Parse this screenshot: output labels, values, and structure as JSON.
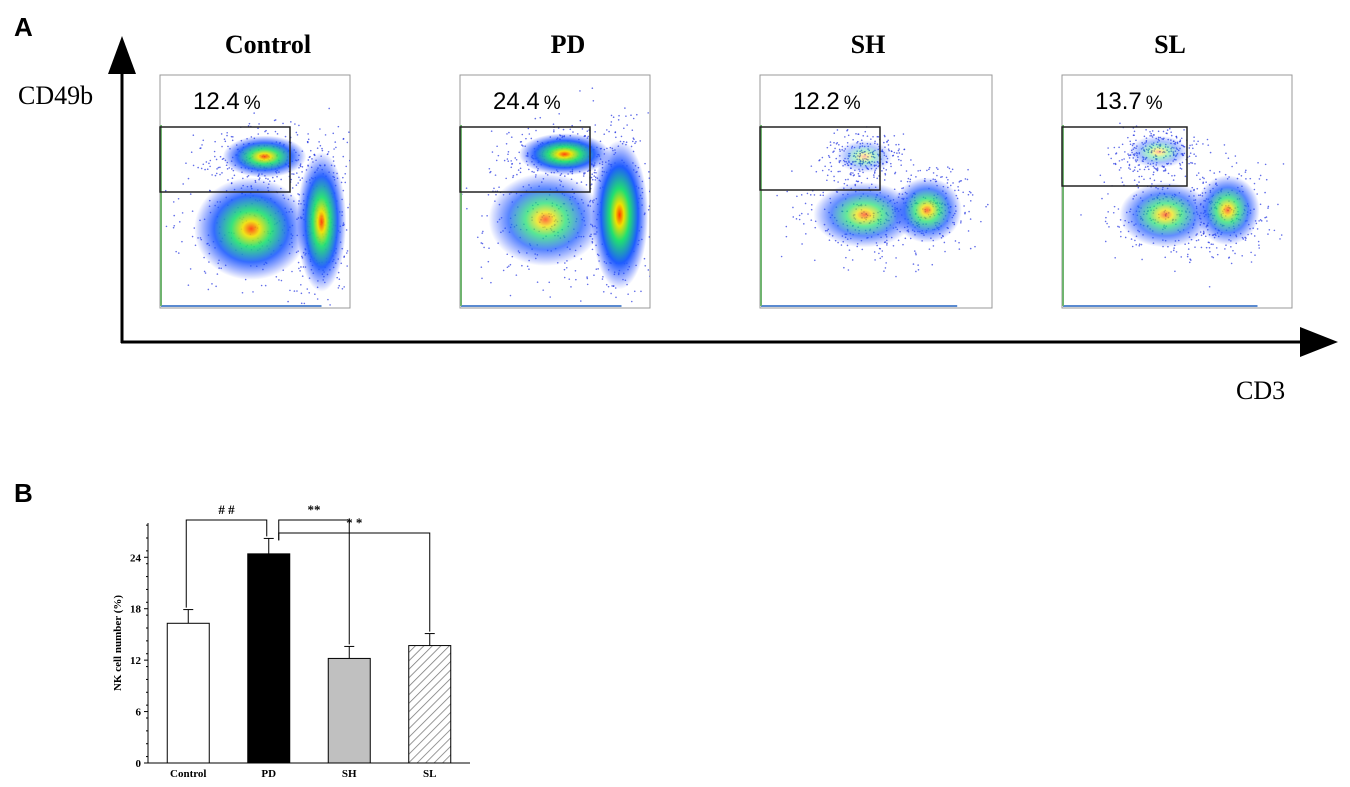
{
  "panel_labels": [
    "A",
    "B"
  ],
  "flow": {
    "y_axis_label": "CD49b",
    "x_axis_label": "CD3",
    "plots": [
      {
        "title": "Control",
        "gate_value": "12.4",
        "unit": "%"
      },
      {
        "title": "PD",
        "gate_value": "24.4",
        "unit": "%"
      },
      {
        "title": "SH",
        "gate_value": "12.2",
        "unit": "%"
      },
      {
        "title": "SL",
        "gate_value": "13.7",
        "unit": "%"
      }
    ]
  },
  "chart_data": {
    "type": "bar",
    "y_label": "NK cell number (%)",
    "categories": [
      "Control",
      "PD",
      "SH",
      "SL"
    ],
    "values": [
      16.3,
      24.4,
      12.2,
      13.7
    ],
    "errors": [
      1.6,
      1.8,
      1.4,
      1.4
    ],
    "colors": [
      "#ffffff",
      "#000000",
      "#c0c0c0",
      "#ffffff"
    ],
    "hatch": [
      false,
      false,
      false,
      true
    ],
    "ylim": [
      0,
      28
    ],
    "yticks": [
      0,
      6,
      12,
      18,
      24
    ],
    "annotations": [
      {
        "text": "# #",
        "between": [
          "Control",
          "PD"
        ]
      },
      {
        "text": "**",
        "between": [
          "PD",
          "SH"
        ]
      },
      {
        "text": "* *",
        "between": [
          "PD",
          "SL"
        ]
      }
    ]
  }
}
